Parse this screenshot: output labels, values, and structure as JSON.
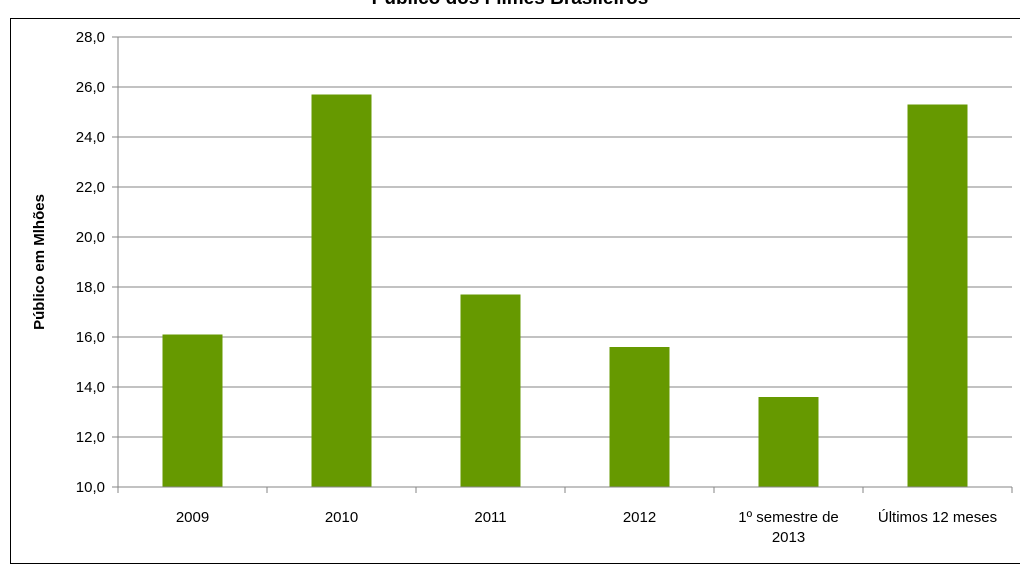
{
  "chart_data": {
    "type": "bar",
    "title": "Público dos Filmes Brasileiros",
    "xlabel": "",
    "ylabel": "Público em Mlhões",
    "categories": [
      "2009",
      "2010",
      "2011",
      "2012",
      "1º semestre de 2013",
      "Últimos 12 meses"
    ],
    "category_label_lines": [
      [
        "2009"
      ],
      [
        "2010"
      ],
      [
        "2011"
      ],
      [
        "2012"
      ],
      [
        "1º semestre de",
        "2013"
      ],
      [
        "Últimos 12 meses"
      ]
    ],
    "values": [
      16.1,
      25.7,
      17.7,
      15.6,
      13.6,
      25.3
    ],
    "ylim": [
      10.0,
      28.0
    ],
    "yticks": [
      "10,0",
      "12,0",
      "14,0",
      "16,0",
      "18,0",
      "20,0",
      "22,0",
      "24,0",
      "26,0",
      "28,0"
    ],
    "grid": true,
    "legend": "none",
    "colors": {
      "bar": "#669900",
      "grid": "#868686"
    }
  }
}
